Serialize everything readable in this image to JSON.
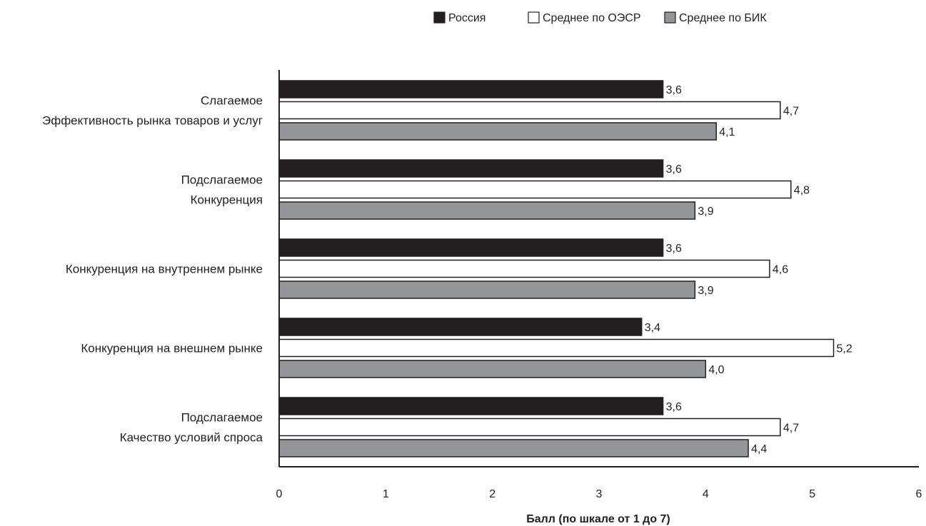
{
  "chart_data": {
    "type": "bar",
    "orientation": "horizontal",
    "categories": [
      [
        "Слагаемое",
        "Эффективность рынка товаров и услуг"
      ],
      [
        "Подслагаемое",
        "Конкуренция"
      ],
      [
        "Конкуренция на внутреннем рынке"
      ],
      [
        "Конкуренция на внешнем рынке"
      ],
      [
        "Подслагаемое",
        "Качество условий спроса"
      ]
    ],
    "series": [
      {
        "name": "Россия",
        "color": "#231f20",
        "values": [
          3.6,
          3.6,
          3.6,
          3.4,
          3.6
        ],
        "labels": [
          "3,6",
          "3,6",
          "3,6",
          "3,4",
          "3,6"
        ]
      },
      {
        "name": "Среднее по ОЭСР",
        "color": "#ffffff",
        "values": [
          4.7,
          4.8,
          4.6,
          5.2,
          4.7
        ],
        "labels": [
          "4,7",
          "4,8",
          "4,6",
          "5,2",
          "4,7"
        ]
      },
      {
        "name": "Среднее по БИК",
        "color": "#939598",
        "values": [
          4.1,
          3.9,
          3.9,
          4.0,
          4.4
        ],
        "labels": [
          "4,1",
          "3,9",
          "3,9",
          "4,0",
          "4,4"
        ]
      }
    ],
    "xlabel": "Балл (по шкале от 1 до 7)",
    "xlim": [
      0,
      6
    ],
    "xticks": [
      0,
      1,
      2,
      3,
      4,
      5,
      6
    ],
    "legend_position": "top",
    "grid": false
  }
}
